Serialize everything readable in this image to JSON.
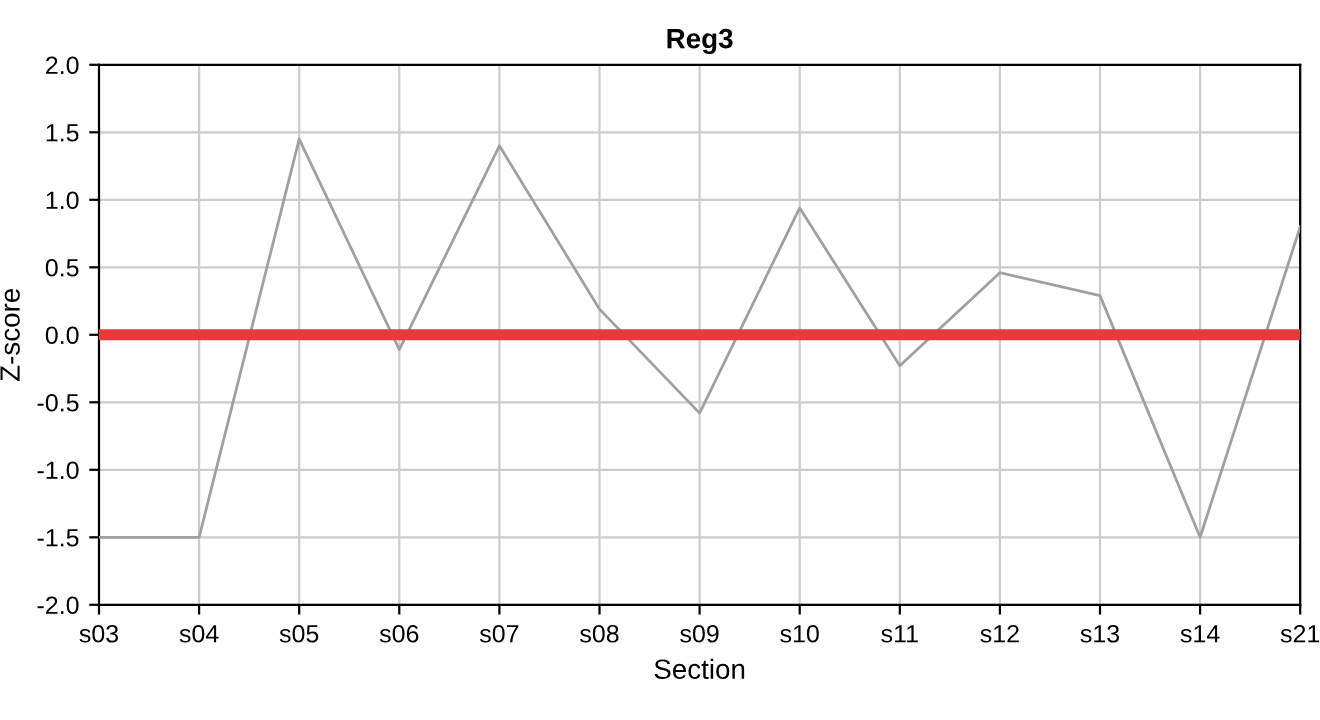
{
  "chart_data": {
    "type": "line",
    "title": "Reg3",
    "xlabel": "Section",
    "ylabel": "Z-score",
    "categories": [
      "s03",
      "s04",
      "s05",
      "s06",
      "s07",
      "s08",
      "s09",
      "s10",
      "s11",
      "s12",
      "s13",
      "s14",
      "s21"
    ],
    "series": [
      {
        "color": "#a0a0a0",
        "values": [
          -1.5,
          -1.5,
          1.45,
          -0.11,
          1.4,
          0.19,
          -0.58,
          0.94,
          -0.23,
          0.46,
          0.29,
          -1.5,
          0.8
        ]
      }
    ],
    "ylim": [
      -2.0,
      2.0
    ],
    "yticks": [
      {
        "value": -2,
        "label": "-2.0"
      },
      {
        "value": -1.5,
        "label": "-1.5"
      },
      {
        "value": -1,
        "label": "-1.0"
      },
      {
        "value": -0.5,
        "label": "-0.5"
      },
      {
        "value": 0,
        "label": "0.0"
      },
      {
        "value": 0.5,
        "label": "0.5"
      },
      {
        "value": 1,
        "label": "1.0"
      },
      {
        "value": 1.5,
        "label": "1.5"
      },
      {
        "value": 2,
        "label": "2.0"
      }
    ],
    "grid": true,
    "ref_lines": [
      {
        "axis": "y",
        "value": 0,
        "color": "#e8393b"
      }
    ]
  }
}
